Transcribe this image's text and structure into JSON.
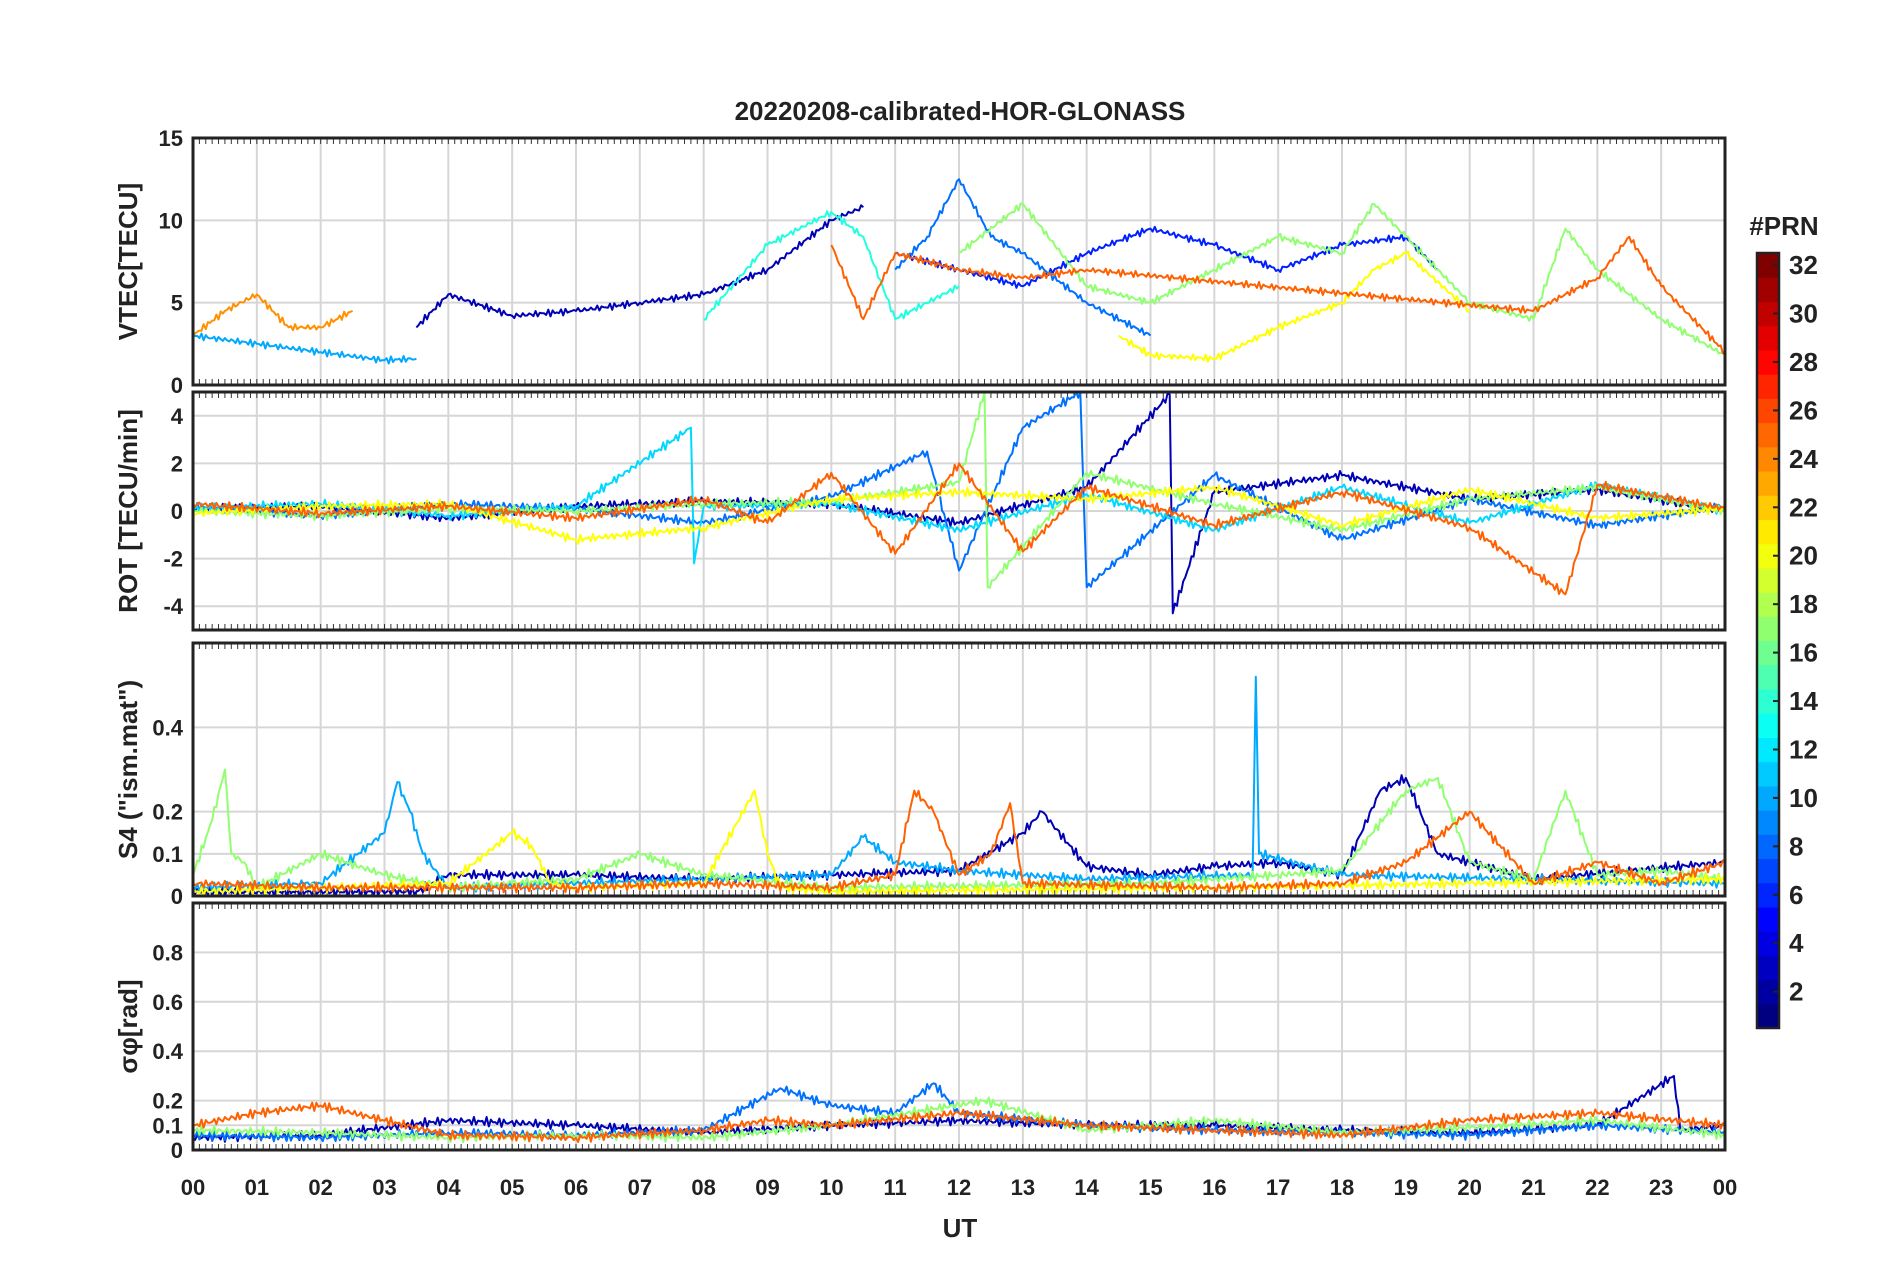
{
  "figure": {
    "title": "20220208-calibrated-HOR-GLONASS",
    "xlabel": "UT",
    "x_tick_labels": [
      "00",
      "01",
      "02",
      "03",
      "04",
      "05",
      "06",
      "07",
      "08",
      "09",
      "10",
      "11",
      "12",
      "13",
      "14",
      "15",
      "16",
      "17",
      "18",
      "19",
      "20",
      "21",
      "22",
      "23",
      "00"
    ]
  },
  "colorbar": {
    "label": "#PRN",
    "colormap": "jet",
    "range": [
      1,
      32
    ],
    "tick_labels": [
      "2",
      "4",
      "6",
      "8",
      "10",
      "12",
      "14",
      "16",
      "18",
      "20",
      "22",
      "24",
      "26",
      "28",
      "30",
      "32"
    ],
    "tick_values": [
      2,
      4,
      6,
      8,
      10,
      12,
      14,
      16,
      18,
      20,
      22,
      24,
      26,
      28,
      30,
      32
    ]
  },
  "chart_data": [
    {
      "type": "line",
      "panel": "VTEC",
      "ylabel": "VTEC[TECU]",
      "xlim": [
        0,
        24
      ],
      "ylim": [
        0,
        15
      ],
      "yticks": [
        0,
        5,
        10,
        15
      ],
      "ytick_labels": [
        "0",
        "5",
        "10",
        "15"
      ],
      "grid": true,
      "series": [
        {
          "prn": 2,
          "color": "#0000b4",
          "x": [
            3.5,
            4.0,
            5.0,
            6.0,
            7.0,
            8.0,
            9.0,
            10.0,
            10.5
          ],
          "y": [
            3.5,
            5.5,
            4.2,
            4.5,
            5.0,
            5.5,
            7.0,
            10.0,
            10.8
          ]
        },
        {
          "prn": 5,
          "color": "#0020ff",
          "x": [
            11.0,
            12.0,
            13.0,
            14.0,
            15.0,
            16.0,
            17.0,
            18.0,
            19.0,
            19.5
          ],
          "y": [
            8.0,
            7.0,
            6.0,
            8.0,
            9.5,
            8.5,
            7.0,
            8.5,
            9.0,
            7.0
          ]
        },
        {
          "prn": 8,
          "color": "#0070ff",
          "x": [
            11.0,
            11.5,
            12.0,
            12.5,
            13.0,
            14.0,
            15.0
          ],
          "y": [
            7.0,
            9.0,
            12.5,
            9.0,
            8.0,
            5.0,
            3.0
          ]
        },
        {
          "prn": 10,
          "color": "#00a8ff",
          "x": [
            0.0,
            1.0,
            2.0,
            3.0,
            3.5
          ],
          "y": [
            3.0,
            2.5,
            2.0,
            1.5,
            1.6
          ]
        },
        {
          "prn": 13,
          "color": "#20ffe0",
          "x": [
            8.0,
            9.0,
            10.0,
            10.5,
            11.0,
            12.0
          ],
          "y": [
            4.0,
            8.5,
            10.5,
            9.0,
            4.0,
            6.0
          ]
        },
        {
          "prn": 16,
          "color": "#90ff70",
          "x": [
            12.0,
            13.0,
            14.0,
            15.0,
            16.0,
            17.0,
            18.0,
            18.5,
            19.0,
            20.0,
            21.0,
            21.5,
            22.0,
            23.0,
            24.0
          ],
          "y": [
            8.0,
            11.0,
            6.0,
            5.0,
            7.0,
            9.0,
            8.0,
            11.0,
            9.0,
            5.0,
            4.0,
            9.5,
            7.0,
            4.0,
            1.8
          ]
        },
        {
          "prn": 19,
          "color": "#ffff00",
          "x": [
            14.5,
            15.0,
            16.0,
            17.0,
            18.0,
            18.5,
            19.0,
            20.0
          ],
          "y": [
            3.0,
            1.8,
            1.6,
            3.5,
            5.0,
            7.0,
            8.0,
            4.5
          ]
        },
        {
          "prn": 23,
          "color": "#ff9000",
          "x": [
            0.0,
            0.5,
            1.0,
            1.5,
            2.0,
            2.5
          ],
          "y": [
            3.0,
            4.5,
            5.5,
            3.5,
            3.5,
            4.5
          ]
        },
        {
          "prn": 24,
          "color": "#ff6000",
          "x": [
            10.0,
            10.5,
            11.0,
            12.0,
            13.0,
            14.0,
            21.0,
            22.0,
            22.5,
            23.0,
            24.0
          ],
          "y": [
            8.5,
            4.0,
            8.0,
            7.0,
            6.5,
            7.0,
            4.5,
            6.5,
            9.0,
            6.0,
            2.0
          ]
        }
      ]
    },
    {
      "type": "line",
      "panel": "ROT",
      "ylabel": "ROT [TECU/min]",
      "xlim": [
        0,
        24
      ],
      "ylim": [
        -5,
        5
      ],
      "yticks": [
        -4,
        -2,
        0,
        2,
        4
      ],
      "ytick_labels": [
        "-4",
        "-2",
        "0",
        "2",
        "4"
      ],
      "grid": true,
      "series": [
        {
          "prn": 2,
          "color": "#0000b4",
          "x": [
            0,
            2,
            4,
            6,
            8,
            10,
            12,
            14,
            15.3,
            15.35,
            16,
            18,
            20,
            22,
            24
          ],
          "y": [
            0.1,
            0.2,
            -0.3,
            0.2,
            0.4,
            0.3,
            -0.5,
            1.0,
            4.9,
            -4.3,
            0.8,
            1.5,
            0.5,
            0.9,
            0.0
          ]
        },
        {
          "prn": 8,
          "color": "#0070ff",
          "x": [
            0,
            2,
            4,
            6,
            8,
            10,
            11.5,
            12,
            13,
            13.9,
            14,
            16,
            18,
            20,
            22,
            24
          ],
          "y": [
            0.2,
            -0.2,
            0.3,
            0.1,
            -0.5,
            0.6,
            2.5,
            -2.5,
            3.5,
            5.0,
            -3.2,
            1.5,
            -1.2,
            0.5,
            -0.6,
            0.2
          ]
        },
        {
          "prn": 12,
          "color": "#00d8ff",
          "x": [
            0,
            2,
            4,
            6,
            7.8,
            7.85,
            8,
            10,
            12,
            14,
            16,
            18,
            20,
            22,
            24
          ],
          "y": [
            0.1,
            0.3,
            -0.2,
            0.2,
            3.5,
            -2.2,
            0.2,
            0.3,
            -0.8,
            0.7,
            -0.8,
            1.0,
            -0.5,
            1.1,
            0.0
          ]
        },
        {
          "prn": 16,
          "color": "#90ff70",
          "x": [
            0,
            2,
            4,
            6,
            8,
            10,
            12,
            12.4,
            12.45,
            14,
            16,
            18,
            20,
            22,
            24
          ],
          "y": [
            0.0,
            -0.2,
            0.1,
            0.0,
            0.3,
            0.4,
            1.2,
            5.0,
            -3.2,
            1.6,
            0.3,
            -0.8,
            0.5,
            1.0,
            0.0
          ]
        },
        {
          "prn": 20,
          "color": "#ffff00",
          "x": [
            0,
            2,
            4,
            6,
            8,
            10,
            12,
            14,
            16,
            18,
            20,
            22,
            24
          ],
          "y": [
            -0.1,
            0.2,
            0.3,
            -1.2,
            -0.7,
            0.5,
            0.8,
            0.5,
            1.0,
            -0.6,
            0.9,
            -0.3,
            0.1
          ]
        },
        {
          "prn": 24,
          "color": "#ff6000",
          "x": [
            0,
            2,
            4,
            6,
            8,
            9,
            10,
            11,
            12,
            13,
            14,
            16,
            18,
            20,
            21.5,
            22,
            24
          ],
          "y": [
            0.3,
            -0.1,
            0.2,
            -0.3,
            0.5,
            -0.5,
            1.6,
            -1.8,
            2.0,
            -1.7,
            1.0,
            -0.6,
            0.8,
            -0.7,
            -3.5,
            1.1,
            0.1
          ]
        }
      ]
    },
    {
      "type": "line",
      "panel": "S4",
      "ylabel": "S4 (\"ism.mat\")",
      "xlim": [
        0,
        24
      ],
      "ylim": [
        0,
        0.6
      ],
      "yticks": [
        0,
        0.1,
        0.2,
        0.4
      ],
      "ytick_labels": [
        "0",
        "0.1",
        "0.2",
        "0.4"
      ],
      "grid": true,
      "series": [
        {
          "prn": 2,
          "color": "#0000b4",
          "x": [
            0,
            3.5,
            4,
            6,
            8,
            10,
            12,
            13,
            13.3,
            14,
            15,
            16,
            17,
            18,
            18.6,
            19,
            19.5,
            21,
            24
          ],
          "y": [
            0.01,
            0.01,
            0.05,
            0.05,
            0.04,
            0.05,
            0.06,
            0.15,
            0.2,
            0.07,
            0.05,
            0.07,
            0.08,
            0.05,
            0.25,
            0.28,
            0.1,
            0.04,
            0.08
          ]
        },
        {
          "prn": 10,
          "color": "#00a8ff",
          "x": [
            0,
            2,
            3,
            3.2,
            3.4,
            3.6,
            4,
            6,
            10,
            10.5,
            11,
            12,
            14,
            16.6,
            16.65,
            16.7,
            18,
            24
          ],
          "y": [
            0.02,
            0.03,
            0.15,
            0.27,
            0.2,
            0.1,
            0.02,
            0.03,
            0.05,
            0.14,
            0.08,
            0.06,
            0.04,
            0.05,
            0.52,
            0.1,
            0.05,
            0.03
          ]
        },
        {
          "prn": 16,
          "color": "#90ff70",
          "x": [
            0,
            0.3,
            0.5,
            0.6,
            0.8,
            1,
            2,
            3,
            4,
            5,
            6,
            7,
            8,
            10,
            15,
            17,
            18,
            19,
            19.5,
            20,
            21,
            21.5,
            22,
            23,
            24
          ],
          "y": [
            0.05,
            0.18,
            0.3,
            0.1,
            0.08,
            0.02,
            0.1,
            0.05,
            0.02,
            0.03,
            0.04,
            0.1,
            0.05,
            0.02,
            0.03,
            0.05,
            0.06,
            0.25,
            0.28,
            0.08,
            0.04,
            0.25,
            0.05,
            0.06,
            0.04
          ]
        },
        {
          "prn": 20,
          "color": "#ffff00",
          "x": [
            0,
            4,
            5,
            5.3,
            5.6,
            6,
            8,
            8.8,
            9,
            9.2,
            10,
            16,
            20,
            24
          ],
          "y": [
            0.01,
            0.03,
            0.15,
            0.12,
            0.03,
            0.02,
            0.03,
            0.25,
            0.1,
            0.02,
            0.01,
            0.02,
            0.03,
            0.04
          ]
        },
        {
          "prn": 24,
          "color": "#ff6000",
          "x": [
            0,
            2,
            6,
            8,
            10,
            11,
            11.3,
            11.6,
            12,
            12.5,
            12.8,
            13,
            16,
            18,
            19,
            20,
            21,
            22,
            23,
            24
          ],
          "y": [
            0.03,
            0.02,
            0.02,
            0.03,
            0.02,
            0.05,
            0.25,
            0.2,
            0.05,
            0.1,
            0.22,
            0.03,
            0.02,
            0.03,
            0.08,
            0.2,
            0.03,
            0.08,
            0.03,
            0.08
          ]
        }
      ]
    },
    {
      "type": "line",
      "panel": "sigma_phi",
      "ylabel": "σφ[rad]",
      "xlim": [
        0,
        24
      ],
      "ylim": [
        0,
        1
      ],
      "yticks": [
        0,
        0.1,
        0.2,
        0.4,
        0.6,
        0.8
      ],
      "ytick_labels": [
        "0",
        "0.1",
        "0.2",
        "0.4",
        "0.6",
        "0.8"
      ],
      "grid": true,
      "series": [
        {
          "prn": 2,
          "color": "#0000b4",
          "x": [
            0,
            2,
            4,
            6,
            8,
            10,
            12,
            14,
            16,
            18,
            20,
            22,
            23.2,
            23.3,
            24
          ],
          "y": [
            0.05,
            0.06,
            0.12,
            0.1,
            0.07,
            0.1,
            0.12,
            0.1,
            0.1,
            0.08,
            0.07,
            0.1,
            0.3,
            0.08,
            0.1
          ]
        },
        {
          "prn": 8,
          "color": "#0070ff",
          "x": [
            0,
            2,
            4,
            6,
            8,
            9.2,
            10,
            11,
            11.6,
            12,
            14,
            16,
            18,
            20,
            22,
            24
          ],
          "y": [
            0.06,
            0.05,
            0.07,
            0.06,
            0.08,
            0.25,
            0.18,
            0.15,
            0.27,
            0.15,
            0.1,
            0.08,
            0.07,
            0.06,
            0.1,
            0.07
          ]
        },
        {
          "prn": 16,
          "color": "#90ff70",
          "x": [
            0,
            2,
            4,
            6,
            8,
            10,
            12.4,
            14,
            16,
            18,
            20,
            22,
            24
          ],
          "y": [
            0.08,
            0.07,
            0.05,
            0.06,
            0.05,
            0.1,
            0.2,
            0.08,
            0.12,
            0.07,
            0.09,
            0.12,
            0.06
          ]
        },
        {
          "prn": 24,
          "color": "#ff6000",
          "x": [
            0,
            1,
            2,
            4,
            6,
            8,
            9,
            10,
            12,
            14,
            16,
            18,
            20,
            22,
            24
          ],
          "y": [
            0.1,
            0.15,
            0.18,
            0.06,
            0.05,
            0.08,
            0.12,
            0.1,
            0.15,
            0.1,
            0.08,
            0.06,
            0.12,
            0.15,
            0.1
          ]
        }
      ]
    }
  ]
}
